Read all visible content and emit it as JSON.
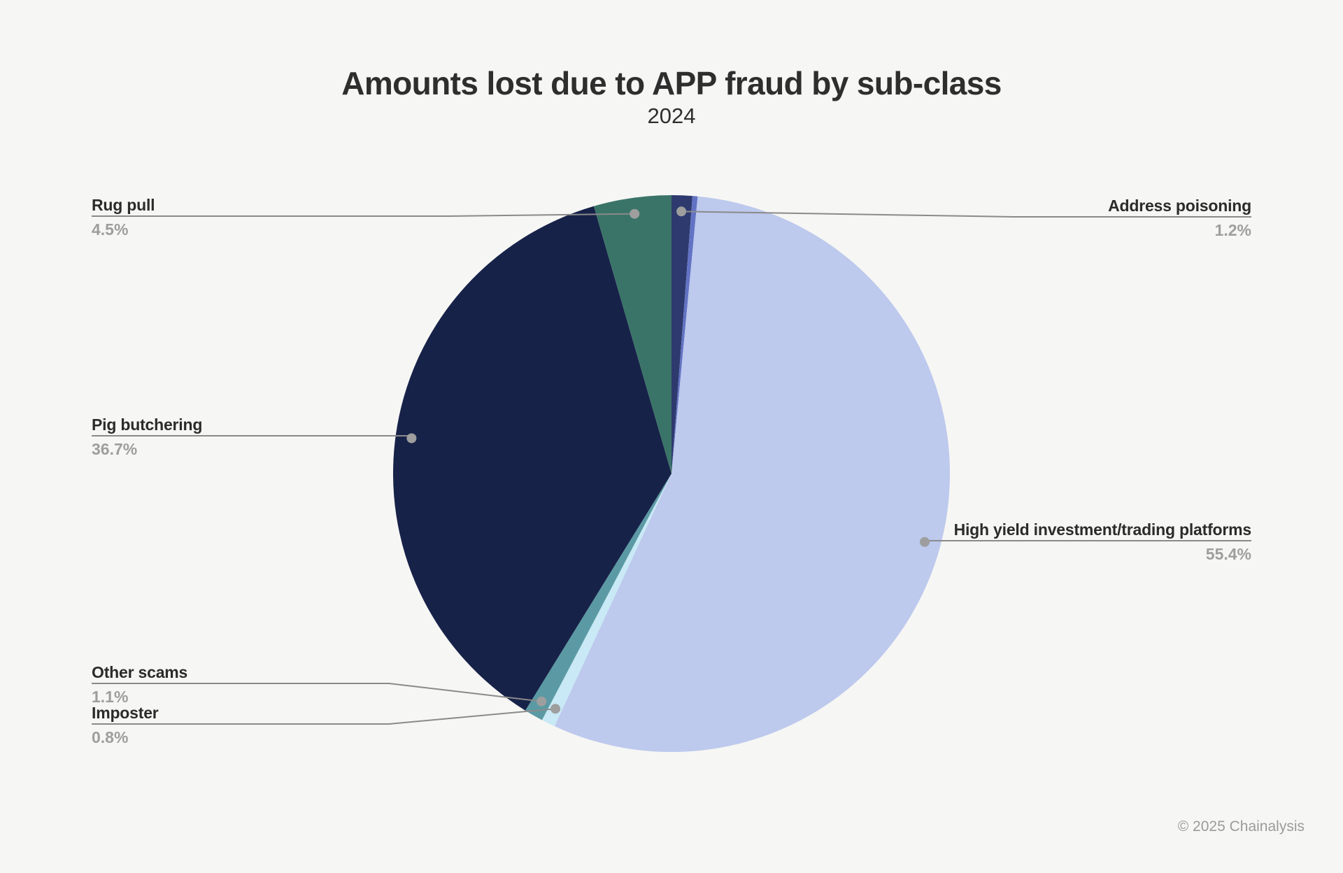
{
  "page": {
    "background_color": "#f6f6f4"
  },
  "header": {
    "title": "Amounts lost due to APP fraud by sub-class",
    "subtitle": "2024"
  },
  "footer": {
    "text": "© 2025 Chainalysis"
  },
  "chart_data": {
    "type": "pie",
    "title": "Amounts lost due to APP fraud by sub-class",
    "subtitle": "2024",
    "start_angle_deg": 0,
    "direction": "clockwise",
    "legend_position": "none",
    "labels_style": "callout-lines-with-dots",
    "slices": [
      {
        "label": "Address poisoning",
        "pct": 1.2,
        "pct_label": "1.2%",
        "color": "#2e3a6e"
      },
      {
        "label": "",
        "pct": 0.3,
        "pct_label": "",
        "color": "#6273c4"
      },
      {
        "label": "High yield investment/trading platforms",
        "pct": 55.4,
        "pct_label": "55.4%",
        "color": "#bdc9ed"
      },
      {
        "label": "Imposter",
        "pct": 0.8,
        "pct_label": "0.8%",
        "color": "#c8e9f5"
      },
      {
        "label": "Other scams",
        "pct": 1.1,
        "pct_label": "1.1%",
        "color": "#5b9aa4"
      },
      {
        "label": "Pig butchering",
        "pct": 36.7,
        "pct_label": "36.7%",
        "color": "#172249"
      },
      {
        "label": "Rug pull",
        "pct": 4.5,
        "pct_label": "4.5%",
        "color": "#3a7468"
      }
    ],
    "style_colors": {
      "connector_line": "#8a8a8a",
      "connector_dot": "#9e9e9e",
      "label_text": "#2b2b2b",
      "pct_text": "#9e9e9e",
      "title_text": "#2e2e2e",
      "footer_text": "#9b9b9b"
    }
  }
}
